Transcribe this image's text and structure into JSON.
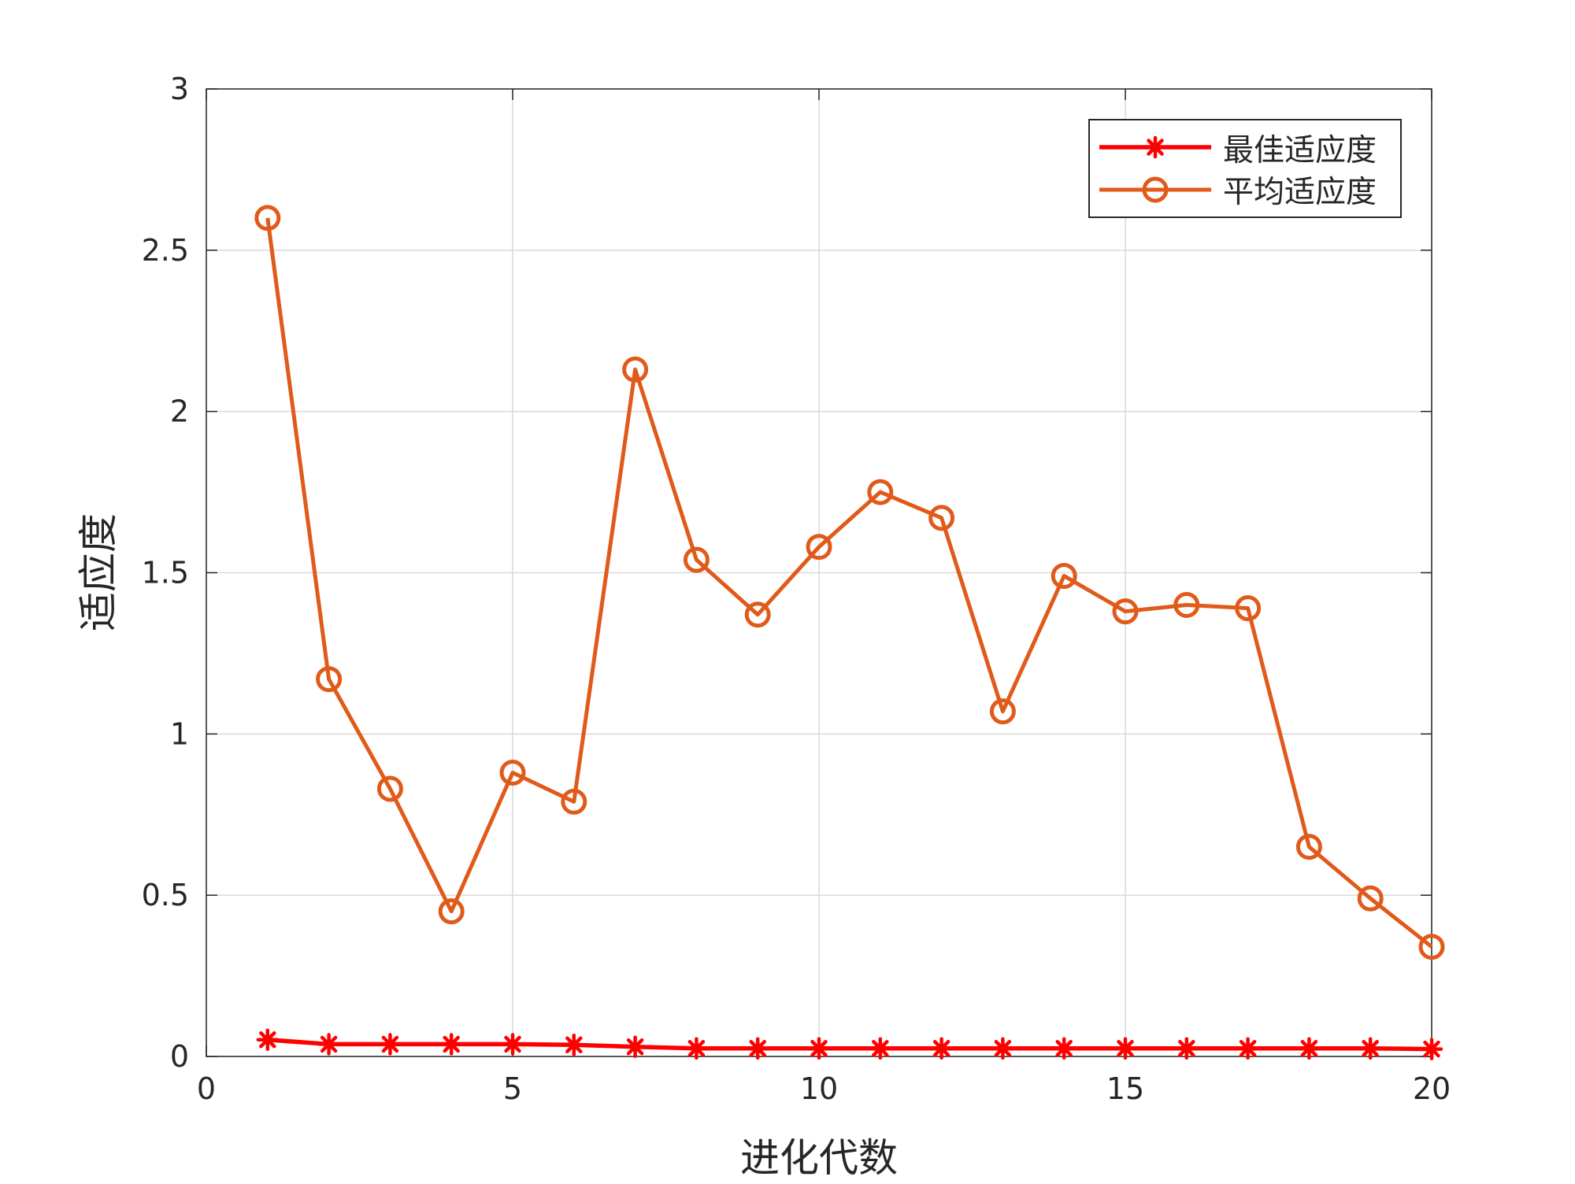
{
  "chart_data": {
    "type": "line",
    "title": "",
    "xlabel": "进化代数",
    "ylabel": "适应度",
    "xlim": [
      0,
      20
    ],
    "ylim": [
      0,
      3
    ],
    "xticks": [
      0,
      5,
      10,
      15,
      20
    ],
    "yticks": [
      0,
      0.5,
      1,
      1.5,
      2,
      2.5,
      3
    ],
    "grid": true,
    "legend_position": "top-right",
    "x": [
      1,
      2,
      3,
      4,
      5,
      6,
      7,
      8,
      9,
      10,
      11,
      12,
      13,
      14,
      15,
      16,
      17,
      18,
      19,
      20
    ],
    "series": [
      {
        "name": "最佳适应度",
        "color": "#ff0000",
        "marker": "asterisk",
        "values": [
          0.052,
          0.038,
          0.038,
          0.038,
          0.038,
          0.036,
          0.03,
          0.025,
          0.025,
          0.025,
          0.025,
          0.025,
          0.025,
          0.025,
          0.025,
          0.025,
          0.025,
          0.025,
          0.025,
          0.023
        ]
      },
      {
        "name": "平均适应度",
        "color": "#e05a1a",
        "marker": "circle",
        "values": [
          2.6,
          1.17,
          0.83,
          0.45,
          0.88,
          0.79,
          2.13,
          1.54,
          1.37,
          1.58,
          1.75,
          1.67,
          1.07,
          1.49,
          1.38,
          1.4,
          1.39,
          0.65,
          0.49,
          0.34
        ]
      }
    ]
  }
}
